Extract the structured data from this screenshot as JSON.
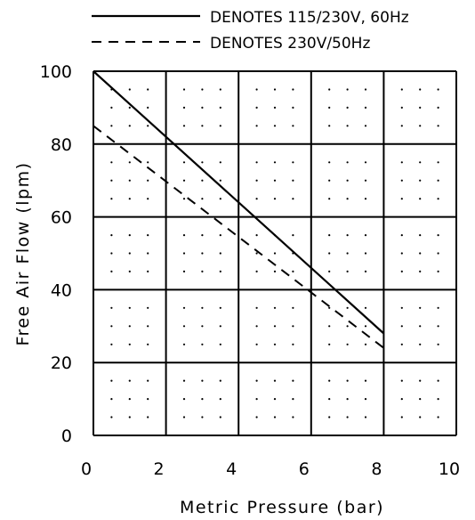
{
  "chart_data": {
    "type": "line",
    "title": "",
    "xlabel": "Metric Pressure (bar)",
    "ylabel": "Free Air Flow (lpm)",
    "xlim": [
      0,
      10
    ],
    "ylim": [
      0,
      100
    ],
    "x_ticks": [
      "0",
      "2",
      "4",
      "6",
      "8",
      "10"
    ],
    "y_ticks": [
      "0",
      "20",
      "40",
      "60",
      "80",
      "100"
    ],
    "grid": true,
    "legend_position": "top",
    "series": [
      {
        "name": "DENOTES 115/230V, 60Hz",
        "style": "solid",
        "x": [
          0,
          8
        ],
        "y": [
          100,
          28
        ]
      },
      {
        "name": "DENOTES 230V/50Hz",
        "style": "dashed",
        "x": [
          0,
          8
        ],
        "y": [
          85,
          24
        ]
      }
    ]
  }
}
